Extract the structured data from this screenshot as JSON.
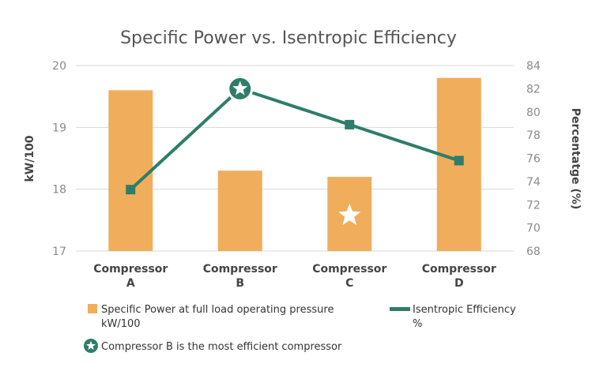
{
  "chart_data": {
    "type": "bar",
    "title": "Specific Power vs. Isentropic Efficiency",
    "categories": [
      [
        "Compressor",
        "A"
      ],
      [
        "Compressor",
        "B"
      ],
      [
        "Compressor",
        "C"
      ],
      [
        "Compressor",
        "D"
      ]
    ],
    "ylabel_left": "kW/100",
    "ylabel_right": "Percentatge (%)",
    "ylim_left": [
      17,
      20
    ],
    "ylim_right": [
      68,
      84
    ],
    "yticks_left": [
      17,
      18,
      19,
      20
    ],
    "yticks_right": [
      68,
      70,
      72,
      74,
      76,
      78,
      80,
      82,
      84
    ],
    "grid": true,
    "series": [
      {
        "name": [
          "Specific Power at full load operating pressure",
          "kW/100"
        ],
        "type": "bar",
        "axis": "left",
        "values": [
          19.6,
          18.3,
          18.2,
          19.8
        ]
      },
      {
        "name": [
          "Isentropic Efficiency",
          "%"
        ],
        "type": "line",
        "axis": "right",
        "values": [
          73.3,
          82.0,
          78.9,
          75.8
        ]
      }
    ],
    "annotations": [
      {
        "category_index": 1,
        "marker": "star-circle",
        "text": "Compressor B is the most efficient compressor"
      },
      {
        "category_index": 2,
        "marker": "star-on-bar"
      }
    ],
    "legend_position": "bottom"
  },
  "colors": {
    "bar": "#f0ad5b",
    "line": "#2e7d6b",
    "grid": "#d9d9d9",
    "star": "#ffffff"
  }
}
